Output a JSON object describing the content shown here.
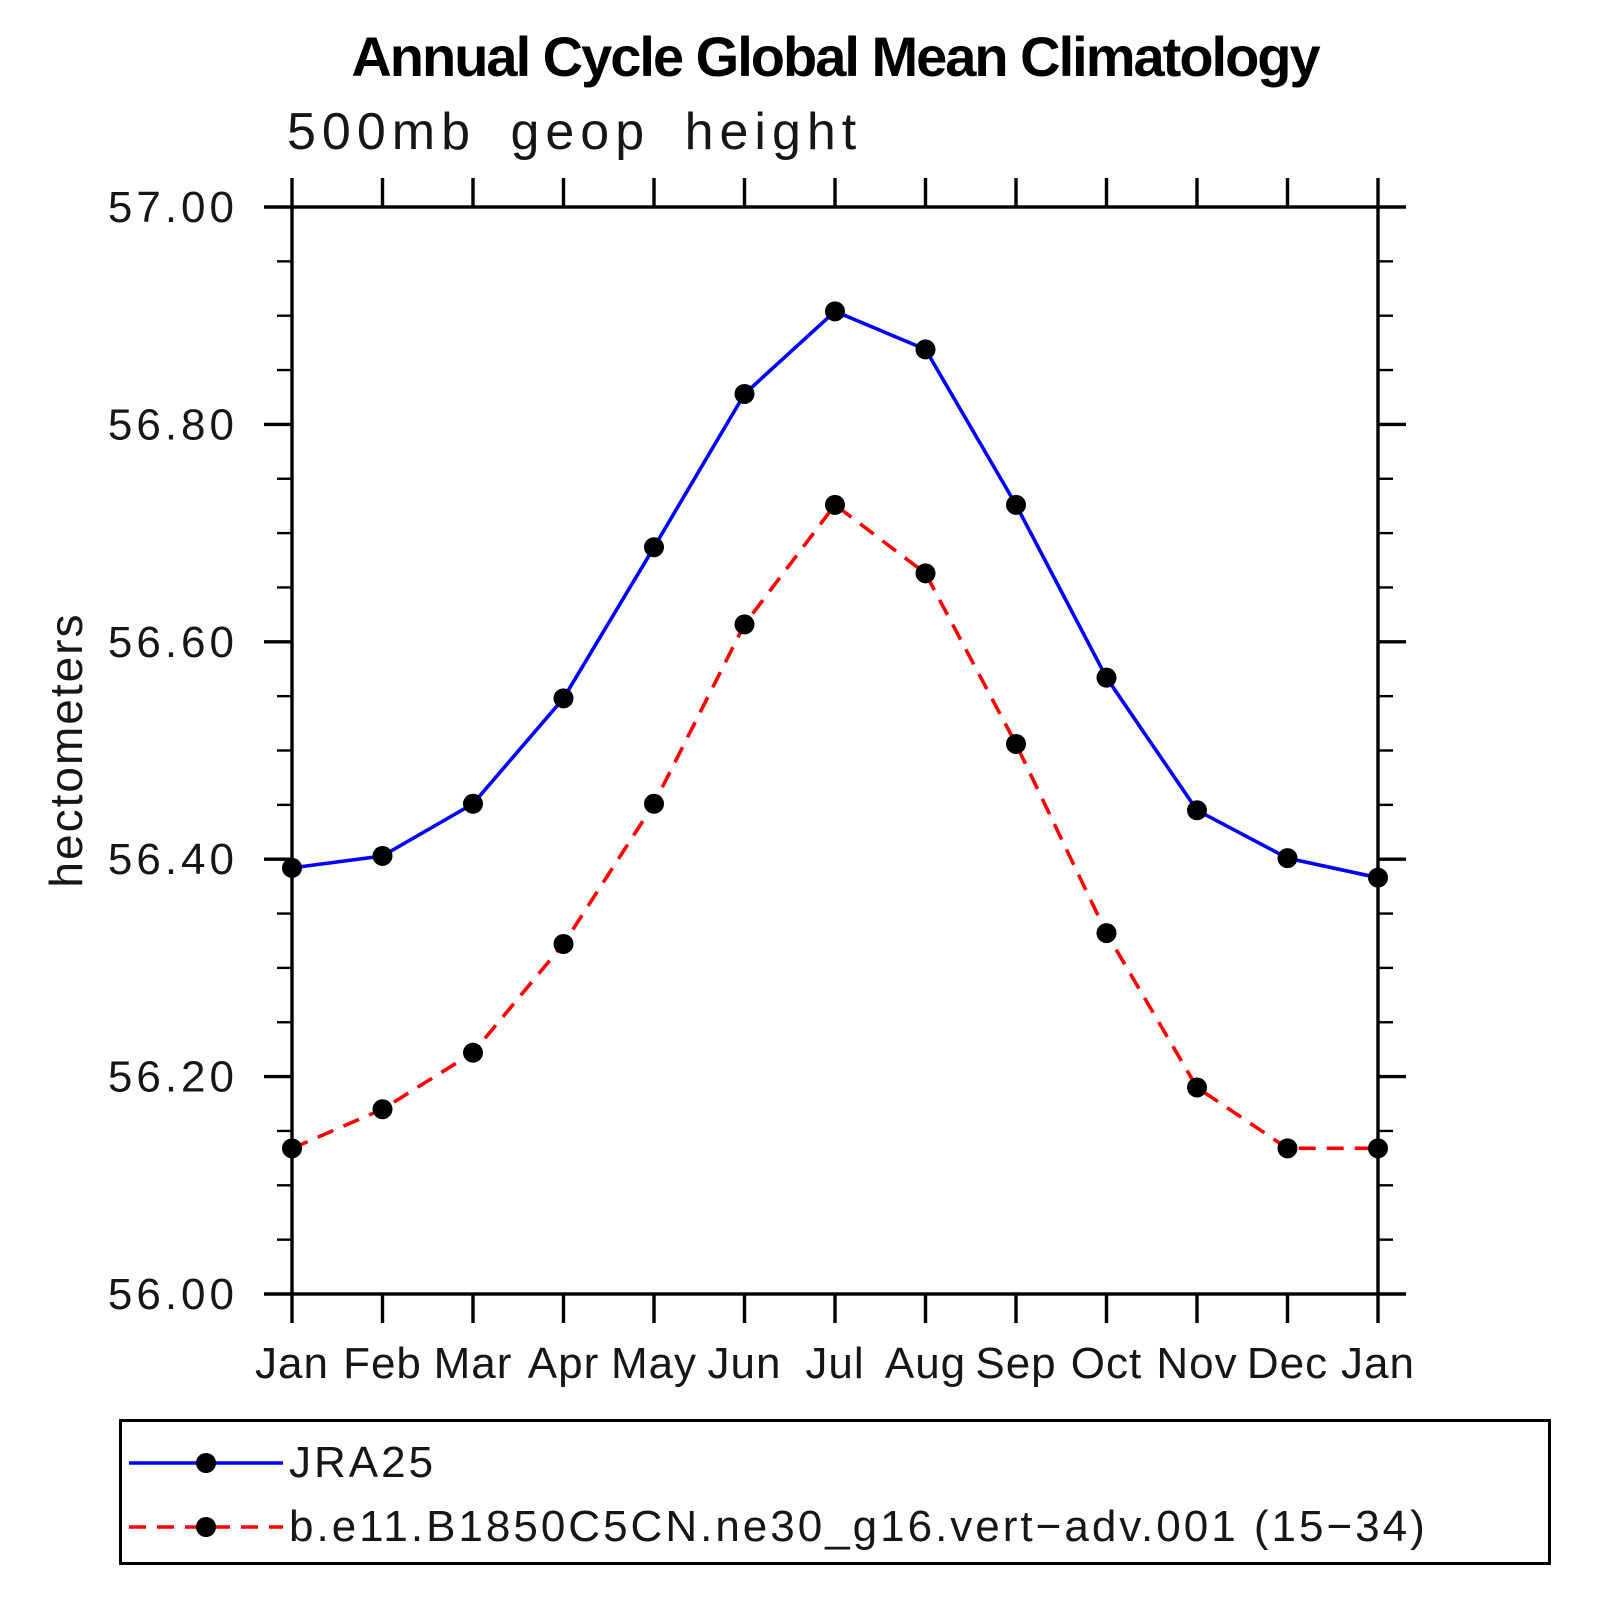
{
  "chart_data": {
    "type": "line",
    "title": "Annual Cycle Global Mean Climatology",
    "subtitle": "500mb geop height",
    "ylabel": "hectometers",
    "xlabel": "",
    "categories": [
      "Jan",
      "Feb",
      "Mar",
      "Apr",
      "May",
      "Jun",
      "Jul",
      "Aug",
      "Sep",
      "Oct",
      "Nov",
      "Dec",
      "Jan"
    ],
    "series": [
      {
        "name": "JRA25",
        "color": "#0000ff",
        "style": "solid",
        "marker": "circle",
        "marker_color": "#000000",
        "values": [
          56.392,
          56.403,
          56.451,
          56.548,
          56.687,
          56.828,
          56.904,
          56.869,
          56.726,
          56.567,
          56.445,
          56.401,
          56.383
        ]
      },
      {
        "name": "b.e11.B1850C5CN.ne30_g16.vert−adv.001 (15−34)",
        "color": "#ff0000",
        "style": "dashed",
        "marker": "circle",
        "marker_color": "#000000",
        "values": [
          56.134,
          56.17,
          56.222,
          56.322,
          56.451,
          56.616,
          56.726,
          56.663,
          56.506,
          56.332,
          56.19,
          56.134,
          56.134
        ]
      }
    ],
    "ylim": [
      56.0,
      57.0
    ],
    "yticks": [
      56.0,
      56.2,
      56.4,
      56.6,
      56.8,
      57.0
    ],
    "ytick_decimals": 2,
    "minor_tick_step": 0.05,
    "grid": false,
    "legend_position": "bottom",
    "axis_color": "#000000"
  }
}
